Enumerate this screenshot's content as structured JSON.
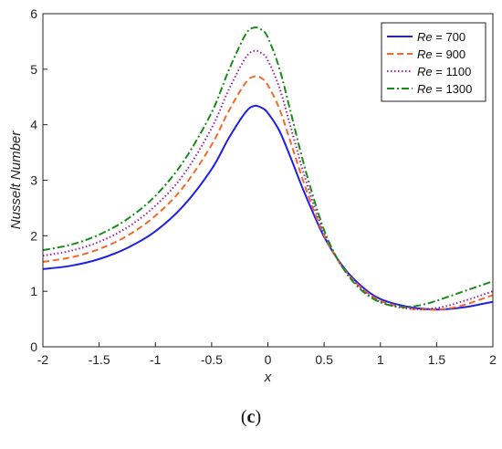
{
  "chart_data": {
    "type": "line",
    "title": "",
    "xlabel": "x",
    "ylabel": "Nusselt Number",
    "xlim": [
      -2,
      2
    ],
    "ylim": [
      0,
      6
    ],
    "xticks": [
      "-2",
      "-1.5",
      "-1",
      "-0.5",
      "0",
      "0.5",
      "1",
      "1.5",
      "2"
    ],
    "yticks": [
      "0",
      "1",
      "2",
      "3",
      "4",
      "5",
      "6"
    ],
    "grid": false,
    "legend_position": "top-right",
    "legend_prefix": "Re",
    "x": [
      -2.0,
      -1.75,
      -1.5,
      -1.25,
      -1.0,
      -0.75,
      -0.5,
      -0.35,
      -0.2,
      -0.12,
      -0.05,
      0.0,
      0.1,
      0.2,
      0.3,
      0.4,
      0.5,
      0.6,
      0.7,
      0.8,
      0.9,
      1.0,
      1.1,
      1.2,
      1.3,
      1.4,
      1.5,
      1.6,
      1.7,
      1.8,
      1.9,
      2.0
    ],
    "series": [
      {
        "name": "Re = 700",
        "legend_value": "= 700",
        "color": "#1f1fe6",
        "dash": "solid",
        "values": [
          1.4,
          1.46,
          1.58,
          1.78,
          2.08,
          2.54,
          3.2,
          3.75,
          4.22,
          4.34,
          4.3,
          4.21,
          3.9,
          3.42,
          2.9,
          2.42,
          1.98,
          1.64,
          1.36,
          1.15,
          0.98,
          0.86,
          0.79,
          0.74,
          0.7,
          0.68,
          0.67,
          0.68,
          0.7,
          0.73,
          0.77,
          0.81
        ]
      },
      {
        "name": "Re = 900",
        "legend_value": "= 900",
        "color": "#f06a2a",
        "dash": "dashed",
        "values": [
          1.53,
          1.61,
          1.76,
          2.0,
          2.36,
          2.88,
          3.64,
          4.24,
          4.75,
          4.87,
          4.83,
          4.71,
          4.3,
          3.7,
          3.07,
          2.5,
          2.01,
          1.63,
          1.34,
          1.12,
          0.95,
          0.83,
          0.76,
          0.71,
          0.68,
          0.67,
          0.67,
          0.69,
          0.73,
          0.79,
          0.86,
          0.93
        ]
      },
      {
        "name": "Re = 1100",
        "legend_value": "= 1100",
        "color": "#a020a8",
        "dash": "dotted",
        "values": [
          1.64,
          1.73,
          1.89,
          2.15,
          2.54,
          3.1,
          3.94,
          4.62,
          5.2,
          5.33,
          5.28,
          5.16,
          4.68,
          3.98,
          3.25,
          2.6,
          2.05,
          1.64,
          1.33,
          1.1,
          0.93,
          0.81,
          0.74,
          0.7,
          0.68,
          0.68,
          0.7,
          0.74,
          0.8,
          0.86,
          0.93,
          1.0
        ]
      },
      {
        "name": "Re = 1300",
        "legend_value": "= 1300",
        "color": "#1a8a1a",
        "dash": "dashdot",
        "values": [
          1.74,
          1.84,
          2.02,
          2.3,
          2.72,
          3.34,
          4.22,
          4.97,
          5.62,
          5.75,
          5.7,
          5.57,
          5.03,
          4.25,
          3.44,
          2.72,
          2.1,
          1.65,
          1.32,
          1.08,
          0.91,
          0.8,
          0.74,
          0.72,
          0.73,
          0.77,
          0.83,
          0.9,
          0.97,
          1.04,
          1.11,
          1.18
        ]
      }
    ]
  },
  "caption": {
    "open": "(",
    "letter": "c",
    "close": ")"
  }
}
